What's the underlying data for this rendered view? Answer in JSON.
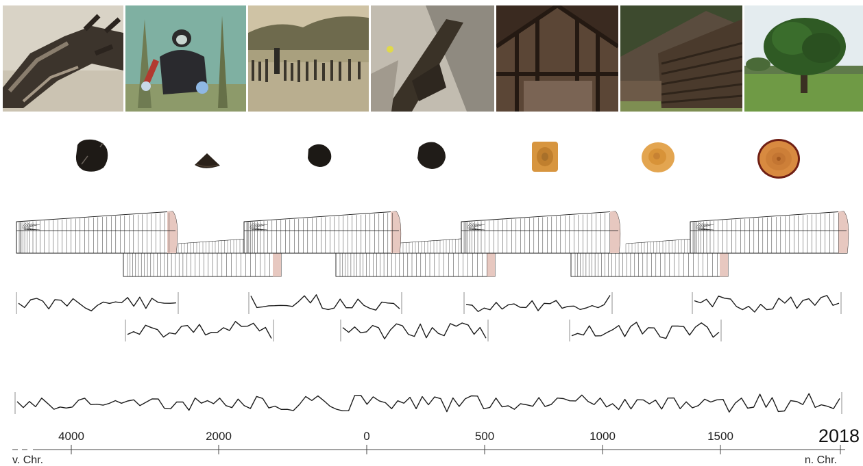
{
  "photos": [
    {
      "name": "photo-driftwood-trunk",
      "icon": "driftwood-photo"
    },
    {
      "name": "photo-underwater-diver",
      "icon": "diver-photo"
    },
    {
      "name": "photo-lake-pile-dwelling",
      "icon": "piles-photo"
    },
    {
      "name": "photo-excavated-timber",
      "icon": "excavation-photo"
    },
    {
      "name": "photo-roof-truss",
      "icon": "truss-photo"
    },
    {
      "name": "photo-log-cabin",
      "icon": "cabin-photo"
    },
    {
      "name": "photo-oak-tree",
      "icon": "tree-photo"
    }
  ],
  "samples": [
    {
      "name": "sample-blackened-disc",
      "shape": "disc",
      "color": "#1e1a16"
    },
    {
      "name": "sample-wedge",
      "shape": "wedge",
      "color": "#2a2119"
    },
    {
      "name": "sample-small-disc",
      "shape": "disc",
      "color": "#1c1915"
    },
    {
      "name": "sample-dark-disc",
      "shape": "disc",
      "color": "#201c18"
    },
    {
      "name": "sample-rectangular-block",
      "shape": "block",
      "color": "#d7953f"
    },
    {
      "name": "sample-light-disc",
      "shape": "disc",
      "color": "#e3a550"
    },
    {
      "name": "sample-fresh-disc",
      "shape": "ring",
      "color": "#d88a40"
    }
  ],
  "axis": {
    "tick_labels": [
      "4000",
      "2000",
      "0",
      "500",
      "1000",
      "1500"
    ],
    "end_year": "2018",
    "left_label": "v. Chr.",
    "right_label": "n. Chr."
  },
  "colors": {
    "line": "#1a1a1a",
    "bracket": "#b8b8b8",
    "ring_edge": "#e7c8c0",
    "axis": "#444444"
  }
}
